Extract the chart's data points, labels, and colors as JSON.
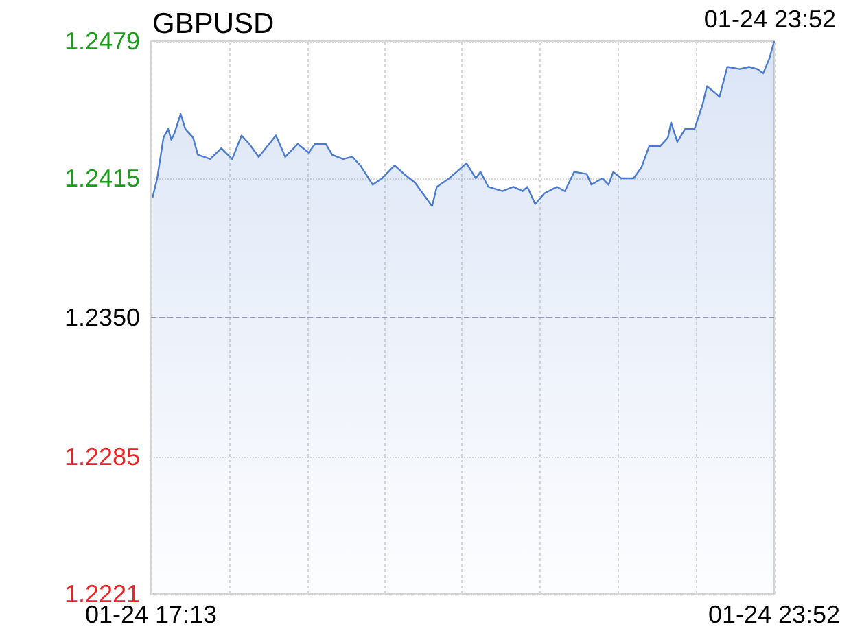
{
  "chart_data": {
    "type": "area",
    "title": "GBPUSD",
    "annotations": [
      "01-24 23:52"
    ],
    "x": [
      "--01-24T17:14",
      "--01-24T17:17",
      "--01-24T17:21",
      "--01-24T17:24",
      "--01-24T17:26",
      "--01-24T17:28",
      "--01-24T17:32",
      "--01-24T17:35",
      "--01-24T17:40",
      "--01-24T17:43",
      "--01-24T17:51",
      "--01-24T17:58",
      "--01-24T18:05",
      "--01-24T18:11",
      "--01-24T18:16",
      "--01-24T18:22",
      "--01-24T18:33",
      "--01-24T18:39",
      "--01-24T18:47",
      "--01-24T18:54",
      "--01-24T18:58",
      "--01-24T19:05",
      "--01-24T19:09",
      "--01-24T19:16",
      "--01-24T19:22",
      "--01-24T19:27",
      "--01-24T19:35",
      "--01-24T19:41",
      "--01-24T19:49",
      "--01-24T19:55",
      "--01-24T20:02",
      "--01-24T20:08",
      "--01-24T20:13",
      "--01-24T20:16",
      "--01-24T20:24",
      "--01-24T20:35",
      "--01-24T20:41",
      "--01-24T20:44",
      "--01-24T20:49",
      "--01-24T20:58",
      "--01-24T21:05",
      "--01-24T21:11",
      "--01-24T21:14",
      "--01-24T21:19",
      "--01-24T21:25",
      "--01-24T21:33",
      "--01-24T21:38",
      "--01-24T21:44",
      "--01-24T21:52",
      "--01-24T21:55",
      "--01-24T22:02",
      "--01-24T22:06",
      "--01-24T22:09",
      "--01-24T22:14",
      "--01-24T22:22",
      "--01-24T22:27",
      "--01-24T22:32",
      "--01-24T22:39",
      "--01-24T22:44",
      "--01-24T22:46",
      "--01-24T22:50",
      "--01-24T22:55",
      "--01-24T23:01",
      "--01-24T23:06",
      "--01-24T23:09",
      "--01-24T23:14",
      "--01-24T23:17",
      "--01-24T23:22",
      "--01-24T23:30",
      "--01-24T23:36",
      "--01-24T23:41",
      "--01-24T23:45",
      "--01-24T23:49",
      "--01-24T23:52"
    ],
    "series": [
      {
        "color": "#4a7bd0",
        "values": [
          1.2406,
          1.2415,
          1.2434,
          1.2438,
          1.2433,
          1.2436,
          1.2445,
          1.2438,
          1.2434,
          1.2426,
          1.2424,
          1.2429,
          1.2424,
          1.2435,
          1.2431,
          1.2425,
          1.2435,
          1.2425,
          1.2431,
          1.2427,
          1.2431,
          1.2431,
          1.2426,
          1.2424,
          1.2425,
          1.2421,
          1.2412,
          1.2415,
          1.2421,
          1.2417,
          1.2413,
          1.2407,
          1.2402,
          1.2411,
          1.2415,
          1.2422,
          1.2415,
          1.2418,
          1.2411,
          1.2409,
          1.2411,
          1.2409,
          1.2411,
          1.2403,
          1.2408,
          1.2411,
          1.2409,
          1.2418,
          1.2417,
          1.2412,
          1.2415,
          1.2412,
          1.2418,
          1.2415,
          1.2415,
          1.242,
          1.243,
          1.243,
          1.2434,
          1.2441,
          1.2432,
          1.2438,
          1.2438,
          1.2449,
          1.2458,
          1.2455,
          1.2453,
          1.2467,
          1.2466,
          1.2467,
          1.2466,
          1.2464,
          1.2471,
          1.2479
        ]
      }
    ],
    "xlim": [
      "--01-24T17:13",
      "--01-24T23:52"
    ],
    "xticks": [
      {
        "value": "--01-24T17:13",
        "label": "01-24 17:13"
      },
      {
        "value": "--01-24T18:03",
        "label": null
      },
      {
        "value": "--01-24T18:53",
        "label": null
      },
      {
        "value": "--01-24T19:43",
        "label": null
      },
      {
        "value": "--01-24T20:32",
        "label": null
      },
      {
        "value": "--01-24T21:22",
        "label": null
      },
      {
        "value": "--01-24T22:12",
        "label": null
      },
      {
        "value": "--01-24T23:02",
        "label": null
      },
      {
        "value": "--01-24T23:52",
        "label": "01-24 23:52"
      }
    ],
    "ylim": [
      1.2221,
      1.2479
    ],
    "yticks": [
      1.2221,
      1.2285,
      {
        "value": 1.235,
        "label": "1.2350"
      },
      1.2415,
      1.2479
    ],
    "ref_lines": [
      {
        "axis": "y",
        "value": 1.235,
        "line_style": "dashed"
      }
    ],
    "grid": true,
    "marker": "none",
    "line_style": "solid"
  }
}
